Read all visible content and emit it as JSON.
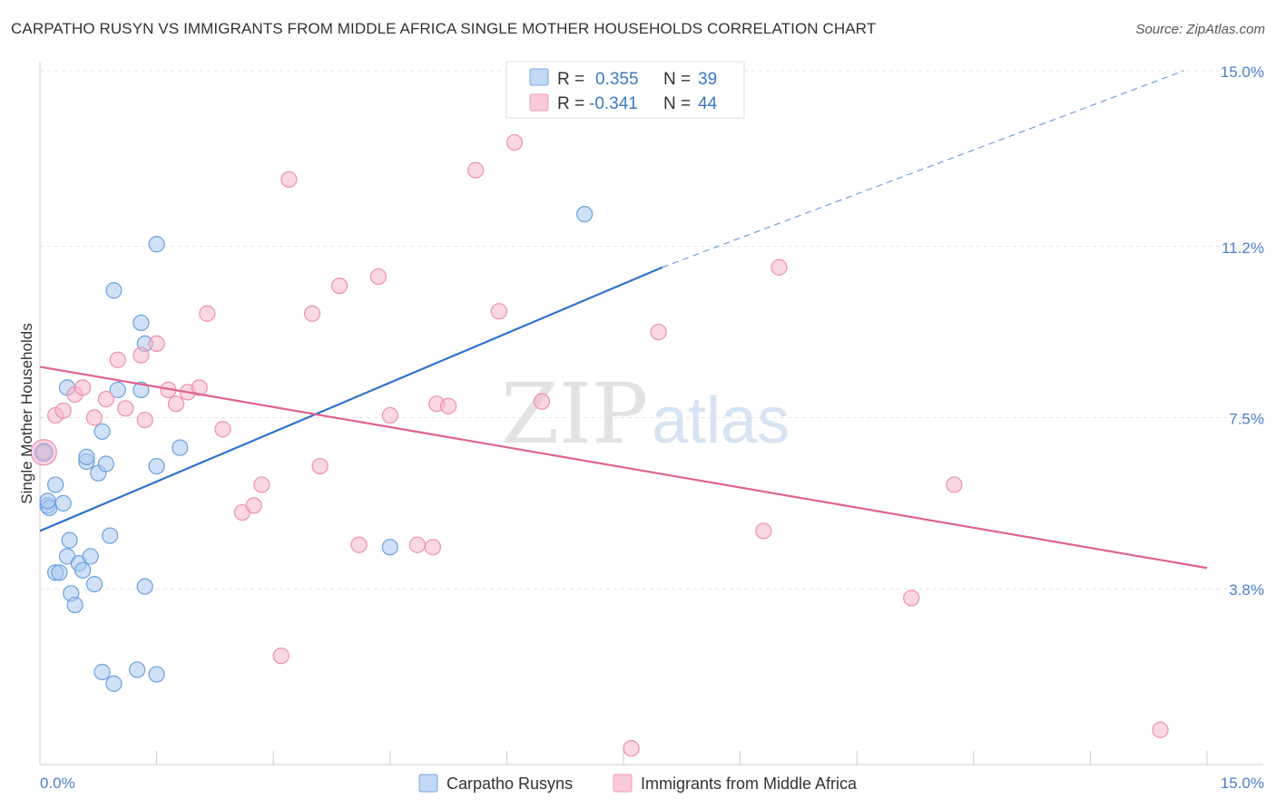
{
  "header": {
    "title": "CARPATHO RUSYN VS IMMIGRANTS FROM MIDDLE AFRICA SINGLE MOTHER HOUSEHOLDS CORRELATION CHART",
    "source": "Source: ZipAtlas.com"
  },
  "watermark": {
    "zip": "ZIP",
    "atlas": "atlas"
  },
  "legend": {
    "r_label": "R =",
    "n_label": "N =",
    "rows": [
      {
        "r": "0.355",
        "n": "39",
        "color": "#a9c8f0"
      },
      {
        "r": "-0.341",
        "n": "44",
        "color": "#f6b8cb"
      }
    ]
  },
  "chart_data": {
    "type": "scatter",
    "xlabel": "",
    "ylabel": "Single Mother Households",
    "xlim": [
      0,
      15
    ],
    "ylim": [
      0,
      15
    ],
    "x_ticks": [
      "0.0%",
      "15.0%"
    ],
    "y_ticks": [
      {
        "value": 3.8,
        "label": "3.8%"
      },
      {
        "value": 7.5,
        "label": "7.5%"
      },
      {
        "value": 11.2,
        "label": "11.2%"
      },
      {
        "value": 15.0,
        "label": "15.0%"
      }
    ],
    "grid": "dashed horizontal",
    "series": [
      {
        "name": "Carpatho Rusyns",
        "color": "#a9c8f0",
        "stroke": "#6a9fe0",
        "line_color": "#2f72cc",
        "trend": {
          "x0": 0.0,
          "y0": 5.05,
          "x1": 8.0,
          "y1": 10.75,
          "dashed_to_x": 14.7,
          "dashed_to_y": 15.0
        },
        "points": [
          [
            0.05,
            6.75
          ],
          [
            0.1,
            5.6
          ],
          [
            0.12,
            5.55
          ],
          [
            0.2,
            6.05
          ],
          [
            0.3,
            5.65
          ],
          [
            0.35,
            4.5
          ],
          [
            0.38,
            4.85
          ],
          [
            0.2,
            4.15
          ],
          [
            0.25,
            4.15
          ],
          [
            0.4,
            3.7
          ],
          [
            0.45,
            3.45
          ],
          [
            0.5,
            4.35
          ],
          [
            0.55,
            4.2
          ],
          [
            0.6,
            6.55
          ],
          [
            0.65,
            4.5
          ],
          [
            0.7,
            3.9
          ],
          [
            0.75,
            6.3
          ],
          [
            0.8,
            7.2
          ],
          [
            0.85,
            6.5
          ],
          [
            0.9,
            4.95
          ],
          [
            0.8,
            2.0
          ],
          [
            0.95,
            1.75
          ],
          [
            1.25,
            2.05
          ],
          [
            1.5,
            1.95
          ],
          [
            1.3,
            8.1
          ],
          [
            1.35,
            9.1
          ],
          [
            1.3,
            9.55
          ],
          [
            1.35,
            3.85
          ],
          [
            1.5,
            11.25
          ],
          [
            1.5,
            6.45
          ],
          [
            1.8,
            6.85
          ],
          [
            0.95,
            10.25
          ],
          [
            0.6,
            6.65
          ],
          [
            4.5,
            4.7
          ],
          [
            7.0,
            11.9
          ],
          [
            0.35,
            8.15
          ],
          [
            1.0,
            8.1
          ],
          [
            0.05,
            6.75
          ],
          [
            0.1,
            5.7
          ]
        ]
      },
      {
        "name": "Immigrants from Middle Africa",
        "color": "#f6b8cb",
        "stroke": "#ee8fae",
        "line_color": "#e0628f",
        "trend": {
          "x0": 0.0,
          "y0": 8.6,
          "x1": 15.0,
          "y1": 4.25
        },
        "points": [
          [
            0.05,
            6.75
          ],
          [
            0.2,
            7.55
          ],
          [
            0.3,
            7.65
          ],
          [
            0.45,
            8.0
          ],
          [
            0.55,
            8.15
          ],
          [
            0.7,
            7.5
          ],
          [
            0.85,
            7.9
          ],
          [
            1.0,
            8.75
          ],
          [
            1.1,
            7.7
          ],
          [
            1.3,
            8.85
          ],
          [
            1.35,
            7.45
          ],
          [
            1.5,
            9.1
          ],
          [
            1.65,
            8.1
          ],
          [
            1.75,
            7.8
          ],
          [
            1.9,
            8.05
          ],
          [
            2.05,
            8.15
          ],
          [
            2.15,
            9.75
          ],
          [
            2.35,
            7.25
          ],
          [
            2.6,
            5.45
          ],
          [
            2.75,
            5.6
          ],
          [
            2.85,
            6.05
          ],
          [
            3.2,
            12.65
          ],
          [
            3.5,
            9.75
          ],
          [
            3.6,
            6.45
          ],
          [
            3.85,
            10.35
          ],
          [
            4.1,
            4.75
          ],
          [
            4.35,
            10.55
          ],
          [
            4.5,
            7.55
          ],
          [
            4.85,
            4.75
          ],
          [
            5.1,
            7.8
          ],
          [
            5.25,
            7.75
          ],
          [
            5.6,
            12.85
          ],
          [
            5.9,
            9.8
          ],
          [
            6.1,
            13.45
          ],
          [
            6.45,
            7.85
          ],
          [
            7.6,
            0.35
          ],
          [
            7.95,
            9.35
          ],
          [
            9.3,
            5.05
          ],
          [
            9.5,
            10.75
          ],
          [
            11.2,
            3.6
          ],
          [
            11.75,
            6.05
          ],
          [
            14.4,
            0.75
          ],
          [
            3.1,
            2.35
          ],
          [
            5.05,
            4.7
          ]
        ]
      }
    ]
  }
}
